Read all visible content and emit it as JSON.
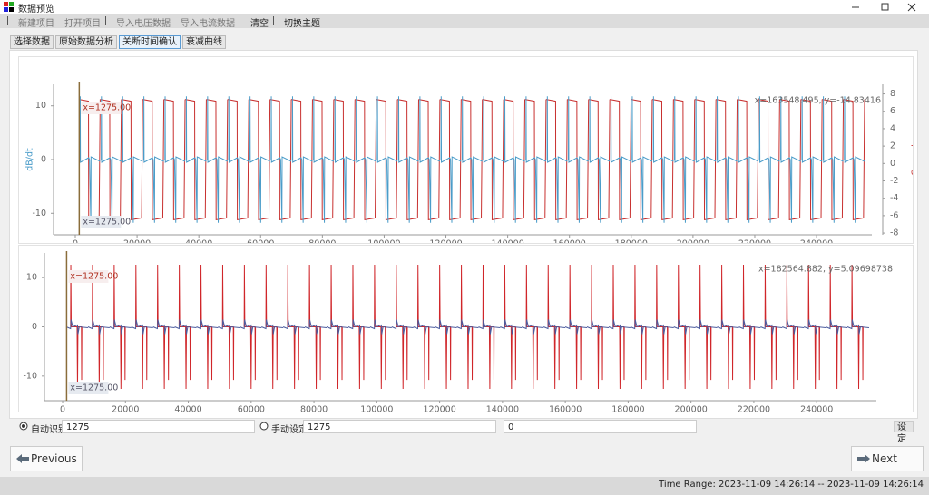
{
  "window": {
    "title": "数据预览"
  },
  "menu": [
    "新建项目",
    "打开项目",
    "导入电压数据",
    "导入电流数据",
    "清空",
    "切换主题"
  ],
  "tabs": [
    "选择数据",
    "原始数据分析",
    "关断时间确认",
    "衰减曲线"
  ],
  "active_tab": 2,
  "chart_data": [
    {
      "type": "line",
      "y_label": "dB/dt",
      "y2_label": "Current",
      "xlim": [
        -7050,
        257900
      ],
      "xticks": [
        0,
        20000,
        40000,
        60000,
        80000,
        100000,
        120000,
        140000,
        160000,
        180000,
        200000,
        220000,
        240000
      ],
      "ylim": [
        -14,
        14
      ],
      "yticks": [
        10,
        0,
        -10
      ],
      "y2lim": [
        -8.2,
        9.1
      ],
      "y2ticks": [
        8,
        6,
        4,
        2,
        0,
        -2,
        -4,
        -6,
        -8
      ],
      "colors": [
        "#c8302f",
        "#4a9cc9"
      ],
      "cursor": {
        "value": 1275,
        "label": "x=1275.00"
      },
      "readout": "x=163548.495, y=-14.83416"
    },
    {
      "type": "line",
      "xlim": [
        -5780,
        259000
      ],
      "xticks": [
        0,
        20000,
        40000,
        60000,
        80000,
        100000,
        120000,
        140000,
        160000,
        180000,
        200000,
        220000,
        240000
      ],
      "ylim": [
        -15,
        15
      ],
      "yticks": [
        10,
        0,
        -10
      ],
      "colors": [
        "#d0262a",
        "#4b5b9e"
      ],
      "cursor": {
        "value": 1275,
        "label": "x=1275.00"
      },
      "readout": "x=182564.882, y=5.09698738"
    }
  ],
  "controls": {
    "auto_label": "自动识别",
    "auto_value": "1275",
    "manual_label": "手动设定",
    "manual_value": "1275",
    "third_value": "0",
    "set_button": "设定"
  },
  "nav": {
    "previous": "Previous",
    "next": "Next"
  },
  "status": "Time Range: 2023-11-09 14:26:14 -- 2023-11-09 14:26:14"
}
